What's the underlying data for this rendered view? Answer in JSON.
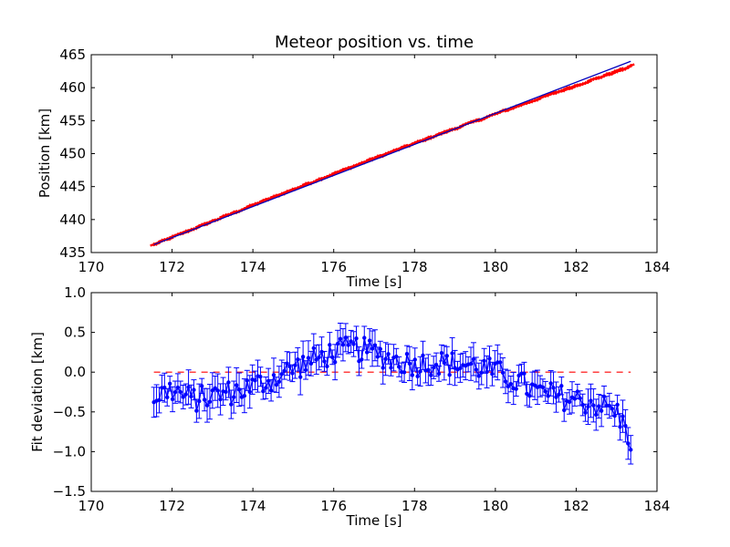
{
  "chart_data": [
    {
      "type": "scatter",
      "title": "Meteor position vs. time",
      "xlabel": "Time [s]",
      "ylabel": "Position [km]",
      "xlim": [
        170,
        184
      ],
      "ylim": [
        435,
        465
      ],
      "xticks": [
        "170",
        "172",
        "174",
        "176",
        "178",
        "180",
        "182",
        "184"
      ],
      "yticks": [
        "435",
        "440",
        "445",
        "450",
        "455",
        "460",
        "465"
      ],
      "grid": false,
      "series": [
        {
          "kind": "errorbar-points",
          "color": "#ff0000",
          "t_start": 171.55,
          "t_end": 183.35,
          "count": 180,
          "start": 436.2,
          "end": 463.2
        },
        {
          "kind": "fit-line",
          "color": "#0000bf",
          "x": [
            171.55,
            183.35
          ],
          "y": [
            436.2,
            464.0
          ]
        }
      ]
    },
    {
      "type": "line",
      "xlabel": "Time [s]",
      "ylabel": "Fit deviation [km]",
      "xlim": [
        170,
        184
      ],
      "ylim": [
        -1.5,
        1.0
      ],
      "xticks": [
        "170",
        "172",
        "174",
        "176",
        "178",
        "180",
        "182",
        "184"
      ],
      "yticks": [
        "−1.5",
        "−1.0",
        "−0.5",
        "0.0",
        "0.5",
        "1.0"
      ],
      "grid": false,
      "series": [
        {
          "kind": "zero-line",
          "color": "#ff0000",
          "x": [
            171.55,
            183.35
          ],
          "y": [
            0,
            0
          ]
        },
        {
          "kind": "errorbar-line",
          "color": "#0000ff",
          "t_start": 171.55,
          "t_end": 183.35,
          "count": 180,
          "trend_x": [
            171.6,
            172.0,
            172.5,
            173.0,
            173.5,
            174.0,
            174.5,
            175.0,
            175.5,
            176.0,
            176.5,
            177.0,
            177.5,
            178.0,
            178.5,
            179.0,
            179.5,
            180.0,
            180.5,
            181.0,
            181.5,
            182.0,
            182.5,
            183.0,
            183.35
          ],
          "trend_y": [
            -0.3,
            -0.22,
            -0.35,
            -0.3,
            -0.25,
            -0.18,
            -0.08,
            0.05,
            0.15,
            0.25,
            0.3,
            0.25,
            0.15,
            0.1,
            0.12,
            0.1,
            0.08,
            0.0,
            -0.1,
            -0.25,
            -0.3,
            -0.35,
            -0.4,
            -0.5,
            -0.85
          ],
          "error": 0.15
        }
      ]
    }
  ]
}
